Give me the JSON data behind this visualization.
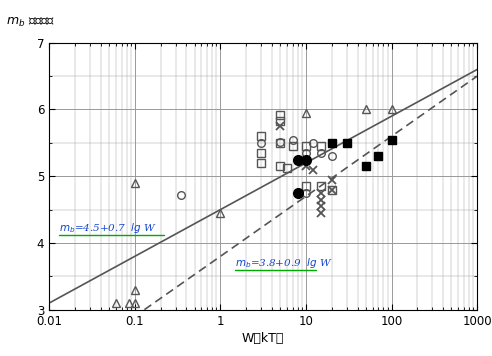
{
  "xlim": [
    0.01,
    1000
  ],
  "ylim": [
    3,
    7
  ],
  "yticks": [
    3,
    4,
    5,
    6,
    7
  ],
  "line1_intercept": 4.5,
  "line1_slope": 0.7,
  "line2_intercept": 3.8,
  "line2_slope": 0.9,
  "line_color": "#555555",
  "triangles_open": [
    [
      0.06,
      3.1
    ],
    [
      0.085,
      3.1
    ],
    [
      0.1,
      3.1
    ],
    [
      0.1,
      3.3
    ],
    [
      0.1,
      4.9
    ],
    [
      1.0,
      4.45
    ],
    [
      10,
      5.95
    ],
    [
      50,
      6.0
    ],
    [
      100,
      6.0
    ]
  ],
  "circles_open": [
    [
      0.35,
      4.72
    ],
    [
      3,
      5.5
    ],
    [
      5,
      5.52
    ],
    [
      7,
      5.55
    ],
    [
      10,
      5.35
    ],
    [
      12,
      5.5
    ],
    [
      15,
      5.35
    ],
    [
      20,
      5.3
    ],
    [
      10,
      4.75
    ]
  ],
  "squares_open": [
    [
      3,
      5.35
    ],
    [
      3,
      5.6
    ],
    [
      3,
      5.2
    ],
    [
      5,
      5.5
    ],
    [
      5,
      5.82
    ],
    [
      5,
      5.92
    ],
    [
      5,
      5.15
    ],
    [
      6,
      5.12
    ],
    [
      7,
      5.45
    ],
    [
      10,
      4.85
    ],
    [
      10,
      5.45
    ],
    [
      15,
      4.85
    ],
    [
      15,
      5.45
    ],
    [
      20,
      4.8
    ]
  ],
  "crosses": [
    [
      5,
      5.75
    ],
    [
      10,
      5.15
    ],
    [
      12,
      5.1
    ],
    [
      15,
      4.65
    ],
    [
      15,
      4.55
    ],
    [
      15,
      4.45
    ],
    [
      15,
      4.75
    ],
    [
      20,
      4.95
    ],
    [
      20,
      4.8
    ]
  ],
  "circles_filled": [
    [
      8,
      5.25
    ],
    [
      8,
      4.75
    ],
    [
      10,
      5.25
    ]
  ],
  "squares_filled": [
    [
      20,
      5.5
    ],
    [
      30,
      5.5
    ],
    [
      50,
      5.15
    ],
    [
      70,
      5.3
    ],
    [
      100,
      5.55
    ]
  ],
  "bg_color": "#ffffff",
  "grid_color": "#999999",
  "marker_color": "#555555",
  "marker_color_filled": "#000000",
  "ann1_color": "#1144cc",
  "ann2_color": "#1144cc",
  "ann_underline_color": "#00aa00"
}
